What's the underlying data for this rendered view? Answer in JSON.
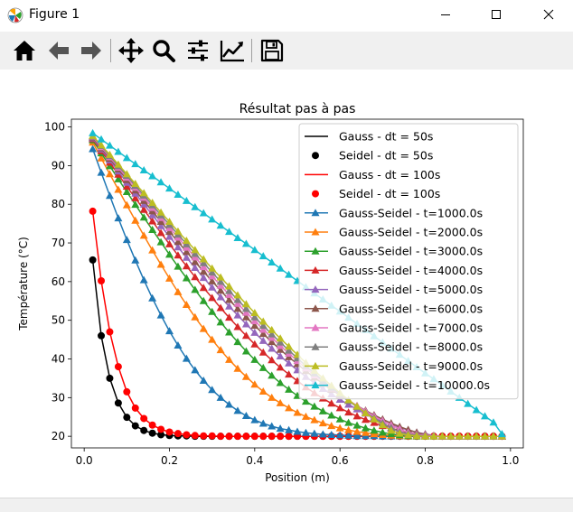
{
  "window": {
    "title": "Figure 1",
    "minimize_icon": "minimize-icon",
    "maximize_icon": "maximize-icon",
    "close_icon": "close-icon"
  },
  "toolbar": {
    "buttons": [
      {
        "name": "home-button",
        "icon": "home-icon",
        "label": "Home"
      },
      {
        "name": "back-button",
        "icon": "arrow-left-icon",
        "label": "Back"
      },
      {
        "name": "forward-button",
        "icon": "arrow-right-icon",
        "label": "Forward"
      },
      {
        "name": "pan-button",
        "icon": "move-icon",
        "label": "Pan"
      },
      {
        "name": "zoom-button",
        "icon": "magnifier-icon",
        "label": "Zoom"
      },
      {
        "name": "subplots-button",
        "icon": "sliders-icon",
        "label": "Configure subplots"
      },
      {
        "name": "edit-axis-button",
        "icon": "chart-line-icon",
        "label": "Edit axis"
      },
      {
        "name": "save-button",
        "icon": "floppy-disk-icon",
        "label": "Save"
      }
    ]
  },
  "chart_data": {
    "type": "line",
    "title": "Résultat pas à pas",
    "xlabel": "Position (m)",
    "ylabel": "Température (°C)",
    "xlim": [
      -0.03,
      1.03
    ],
    "ylim": [
      17,
      102
    ],
    "xticks": [
      0.0,
      0.2,
      0.4,
      0.6,
      0.8,
      1.0
    ],
    "xtick_labels": [
      "0.0",
      "0.2",
      "0.4",
      "0.6",
      "0.8",
      "1.0"
    ],
    "yticks": [
      20,
      30,
      40,
      50,
      60,
      70,
      80,
      90,
      100
    ],
    "ytick_labels": [
      "20",
      "30",
      "40",
      "50",
      "60",
      "70",
      "80",
      "90",
      "100"
    ],
    "legend_position": "top-right",
    "x": [
      0.02,
      0.04,
      0.06,
      0.08,
      0.1,
      0.12,
      0.14,
      0.16,
      0.18,
      0.2,
      0.22,
      0.24,
      0.26,
      0.28,
      0.3,
      0.32,
      0.34,
      0.36,
      0.38,
      0.4,
      0.42,
      0.44,
      0.46,
      0.48,
      0.5,
      0.52,
      0.54,
      0.56,
      0.58,
      0.6,
      0.62,
      0.64,
      0.66,
      0.68,
      0.7,
      0.72,
      0.74,
      0.76,
      0.78,
      0.8,
      0.82,
      0.84,
      0.86,
      0.88,
      0.9,
      0.92,
      0.94,
      0.96,
      0.98
    ],
    "series": [
      {
        "name": "Gauss - dt = 50s",
        "color": "#000000",
        "style": "line",
        "values": [
          65.6,
          46.0,
          35.0,
          28.6,
          24.9,
          22.7,
          21.5,
          20.8,
          20.4,
          20.2,
          20.1,
          20.1,
          20.0,
          20.0,
          20.0,
          20.0,
          20.0,
          20.0,
          20.0,
          20.0,
          20.0,
          20.0,
          20.0,
          20.0,
          20.0,
          20.0,
          20.0,
          20.0,
          20.0,
          20.0,
          20.0,
          20.0,
          20.0,
          20.0,
          20.0,
          20.0,
          20.0,
          20.0,
          20.0,
          20.0,
          20.0,
          20.0,
          20.0,
          20.0,
          20.0,
          20.0,
          20.0,
          20.0,
          20.0
        ]
      },
      {
        "name": "Seidel - dt = 50s",
        "color": "#000000",
        "style": "circle",
        "values": [
          65.6,
          46.0,
          35.0,
          28.6,
          24.9,
          22.7,
          21.5,
          20.8,
          20.4,
          20.2,
          20.1,
          20.1,
          20.0,
          20.0,
          20.0,
          20.0,
          20.0,
          20.0,
          20.0,
          20.0,
          20.0,
          20.0,
          20.0,
          20.0,
          20.0,
          20.0,
          20.0,
          20.0,
          20.0,
          20.0,
          20.0,
          20.0,
          20.0,
          20.0,
          20.0,
          20.0,
          20.0,
          20.0,
          20.0,
          20.0,
          20.0,
          20.0,
          20.0,
          20.0,
          20.0,
          20.0,
          20.0,
          20.0,
          20.0
        ]
      },
      {
        "name": "Gauss - dt = 100s",
        "color": "#ff0000",
        "style": "line",
        "values": [
          78.2,
          60.2,
          47.0,
          38.0,
          31.5,
          27.3,
          24.6,
          22.9,
          21.8,
          21.1,
          20.7,
          20.4,
          20.2,
          20.1,
          20.1,
          20.0,
          20.0,
          20.0,
          20.0,
          20.0,
          20.0,
          20.0,
          20.0,
          20.0,
          20.0,
          20.0,
          20.0,
          20.0,
          20.0,
          20.0,
          20.0,
          20.0,
          20.0,
          20.0,
          20.0,
          20.0,
          20.0,
          20.0,
          20.0,
          20.0,
          20.0,
          20.0,
          20.0,
          20.0,
          20.0,
          20.0,
          20.0,
          20.0,
          20.0
        ]
      },
      {
        "name": "Seidel - dt = 100s",
        "color": "#ff0000",
        "style": "circle",
        "values": [
          78.2,
          60.2,
          47.0,
          38.0,
          31.5,
          27.3,
          24.6,
          22.9,
          21.8,
          21.1,
          20.7,
          20.4,
          20.2,
          20.1,
          20.1,
          20.0,
          20.0,
          20.0,
          20.0,
          20.0,
          20.0,
          20.0,
          20.0,
          20.0,
          20.0,
          20.0,
          20.0,
          20.0,
          20.0,
          20.0,
          20.0,
          20.0,
          20.0,
          20.0,
          20.0,
          20.0,
          20.0,
          20.0,
          20.0,
          20.0,
          20.0,
          20.0,
          20.0,
          20.0,
          20.0,
          20.0,
          20.0,
          20.0,
          20.0
        ]
      },
      {
        "name": "Gauss-Seidel - t=1000.0s",
        "color": "#1f77b4",
        "style": "triangle",
        "values": [
          94.3,
          88.2,
          82.2,
          76.4,
          70.8,
          65.5,
          60.4,
          55.7,
          51.3,
          47.2,
          43.5,
          40.1,
          37.1,
          34.4,
          32.0,
          30.0,
          28.2,
          26.6,
          25.3,
          24.2,
          23.3,
          22.6,
          22.0,
          21.6,
          21.2,
          20.9,
          20.7,
          20.5,
          20.4,
          20.3,
          20.2,
          20.1,
          20.1,
          20.1,
          20.0,
          20.0,
          20.0,
          20.0,
          20.0,
          20.0,
          20.0,
          20.0,
          20.0,
          20.0,
          20.0,
          20.0,
          20.0,
          20.0,
          20.0
        ]
      },
      {
        "name": "Gauss-Seidel - t=2000.0s",
        "color": "#ff7f0e",
        "style": "triangle",
        "values": [
          96.0,
          91.9,
          87.8,
          83.8,
          79.8,
          75.8,
          71.9,
          68.1,
          64.4,
          60.8,
          57.3,
          54.0,
          50.8,
          47.8,
          45.0,
          42.3,
          39.8,
          37.5,
          35.4,
          33.4,
          31.6,
          30.0,
          28.6,
          27.3,
          26.1,
          25.1,
          24.2,
          23.4,
          22.7,
          22.1,
          21.6,
          21.2,
          20.9,
          20.6,
          20.4,
          20.2,
          20.1,
          20.0,
          20.0,
          20.0,
          20.0,
          20.0,
          20.0,
          20.0,
          20.0,
          20.0,
          20.0,
          20.0,
          20.0
        ]
      },
      {
        "name": "Gauss-Seidel - t=3000.0s",
        "color": "#2ca02c",
        "style": "triangle",
        "values": [
          96.6,
          93.2,
          89.9,
          86.5,
          83.2,
          79.9,
          76.6,
          73.4,
          70.2,
          67.0,
          63.9,
          60.9,
          57.9,
          55.0,
          52.2,
          49.5,
          46.9,
          44.4,
          42.0,
          39.8,
          37.7,
          35.7,
          33.8,
          32.1,
          30.5,
          29.0,
          27.7,
          26.5,
          25.4,
          24.4,
          23.5,
          22.8,
          22.1,
          21.5,
          21.0,
          20.6,
          20.3,
          20.1,
          20.0,
          20.0,
          20.0,
          20.0,
          20.0,
          20.0,
          20.0,
          20.0,
          20.0,
          20.0,
          20.0
        ]
      },
      {
        "name": "Gauss-Seidel - t=4000.0s",
        "color": "#d62728",
        "style": "triangle",
        "values": [
          96.9,
          93.8,
          90.8,
          87.7,
          84.6,
          81.6,
          78.6,
          75.6,
          72.6,
          69.7,
          66.8,
          64.0,
          61.2,
          58.4,
          55.8,
          53.2,
          50.7,
          48.3,
          46.0,
          43.8,
          41.7,
          39.7,
          37.8,
          36.0,
          34.3,
          32.7,
          31.2,
          29.8,
          28.5,
          27.3,
          26.2,
          25.2,
          24.3,
          23.5,
          22.7,
          22.1,
          21.5,
          21.0,
          20.6,
          20.3,
          20.1,
          20.0,
          20.0,
          20.0,
          20.0,
          20.0,
          20.0,
          20.0,
          20.0
        ]
      },
      {
        "name": "Gauss-Seidel - t=5000.0s",
        "color": "#9467bd",
        "style": "triangle",
        "values": [
          97.1,
          94.2,
          91.4,
          88.5,
          85.6,
          82.8,
          80.0,
          77.2,
          74.4,
          71.6,
          68.9,
          66.2,
          63.6,
          61.0,
          58.5,
          56.0,
          53.6,
          51.3,
          49.0,
          46.8,
          44.7,
          42.7,
          40.7,
          38.9,
          37.1,
          35.4,
          33.8,
          32.3,
          30.9,
          29.5,
          28.2,
          27.0,
          25.9,
          24.9,
          23.9,
          23.0,
          22.3,
          21.6,
          21.0,
          20.6,
          20.2,
          20.0,
          20.0,
          20.0,
          20.0,
          20.0,
          20.0,
          20.0,
          20.0
        ]
      },
      {
        "name": "Gauss-Seidel - t=6000.0s",
        "color": "#8c564b",
        "style": "triangle",
        "values": [
          97.3,
          94.5,
          91.8,
          89.1,
          86.3,
          83.6,
          80.9,
          78.2,
          75.5,
          72.9,
          70.3,
          67.7,
          65.1,
          62.6,
          60.1,
          57.7,
          55.3,
          53.0,
          50.8,
          48.6,
          46.5,
          44.4,
          42.4,
          40.5,
          38.7,
          36.9,
          35.2,
          33.6,
          32.1,
          30.6,
          29.2,
          27.9,
          26.7,
          25.5,
          24.4,
          23.4,
          22.5,
          21.7,
          21.0,
          20.5,
          20.1,
          20.0,
          20.0,
          20.0,
          20.0,
          20.0,
          20.0,
          20.0,
          20.0
        ]
      },
      {
        "name": "Gauss-Seidel - t=7000.0s",
        "color": "#e377c2",
        "style": "triangle",
        "values": [
          97.5,
          94.8,
          92.2,
          89.5,
          86.9,
          84.3,
          81.7,
          79.1,
          76.5,
          73.9,
          71.4,
          68.8,
          66.3,
          63.8,
          61.4,
          59.0,
          56.6,
          54.3,
          52.0,
          49.8,
          47.6,
          45.5,
          43.4,
          41.4,
          39.5,
          37.6,
          35.8,
          34.1,
          32.4,
          30.8,
          29.3,
          27.9,
          26.5,
          25.2,
          24.0,
          22.9,
          21.9,
          21.0,
          20.5,
          20.3,
          20.1,
          20.0,
          20.0,
          20.0,
          20.0,
          20.0,
          20.0,
          20.0,
          20.0
        ]
      },
      {
        "name": "Gauss-Seidel - t=8000.0s",
        "color": "#7f7f7f",
        "style": "triangle",
        "values": [
          97.6,
          95.1,
          92.5,
          89.9,
          87.4,
          84.8,
          82.3,
          79.8,
          77.2,
          74.7,
          72.2,
          69.7,
          67.2,
          64.8,
          62.4,
          60.0,
          57.6,
          55.3,
          53.0,
          50.8,
          48.6,
          46.4,
          44.3,
          42.2,
          40.2,
          38.2,
          36.3,
          34.4,
          32.6,
          30.9,
          29.2,
          27.6,
          26.1,
          24.7,
          23.4,
          22.2,
          21.1,
          20.6,
          20.3,
          20.1,
          20.0,
          20.0,
          20.0,
          20.0,
          20.0,
          20.0,
          20.0,
          20.0,
          20.0
        ]
      },
      {
        "name": "Gauss-Seidel - t=9000.0s",
        "color": "#bcbd22",
        "style": "triangle",
        "values": [
          97.7,
          95.3,
          92.8,
          90.3,
          87.8,
          85.3,
          82.9,
          80.4,
          77.9,
          75.5,
          73.0,
          70.6,
          68.2,
          65.8,
          63.4,
          61.1,
          58.8,
          56.5,
          54.2,
          51.9,
          49.7,
          47.5,
          45.3,
          43.2,
          41.1,
          39.0,
          37.0,
          35.0,
          33.1,
          31.2,
          29.4,
          27.7,
          26.0,
          24.4,
          22.9,
          21.5,
          20.7,
          20.3,
          20.1,
          20.0,
          20.0,
          20.0,
          20.0,
          20.0,
          20.0,
          20.0,
          20.0,
          20.0,
          20.0
        ]
      },
      {
        "name": "Gauss-Seidel - t=10000.0s",
        "color": "#17becf",
        "style": "triangle",
        "values": [
          98.4,
          96.8,
          95.2,
          93.6,
          92.0,
          90.4,
          88.8,
          87.3,
          85.7,
          84.1,
          82.5,
          80.9,
          79.3,
          77.7,
          76.1,
          74.5,
          72.9,
          71.3,
          69.8,
          68.2,
          66.6,
          65.0,
          63.4,
          61.8,
          60.2,
          58.6,
          57.0,
          55.4,
          53.8,
          52.3,
          50.7,
          49.1,
          47.5,
          45.9,
          44.3,
          42.7,
          41.1,
          39.5,
          37.9,
          36.3,
          34.8,
          33.2,
          31.6,
          30.0,
          28.4,
          26.8,
          25.2,
          23.6,
          20.6
        ]
      }
    ]
  }
}
